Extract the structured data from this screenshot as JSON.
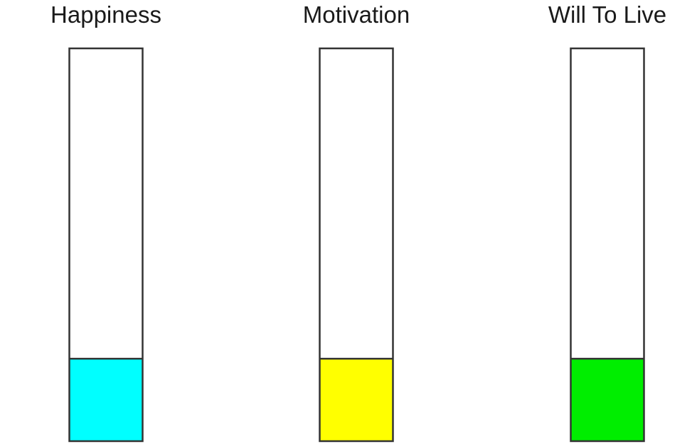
{
  "chart_data": {
    "type": "bar",
    "title": "",
    "xlabel": "",
    "ylabel": "",
    "ylim": [
      0,
      1
    ],
    "grid": false,
    "legend": "none",
    "categories": [
      "Happiness",
      "Motivation",
      "Will To Live"
    ],
    "values": [
      0.21,
      0.21,
      0.21
    ],
    "colors": [
      "#00ffff",
      "#ffff00",
      "#00ee00"
    ],
    "outline_color": "#333333"
  }
}
